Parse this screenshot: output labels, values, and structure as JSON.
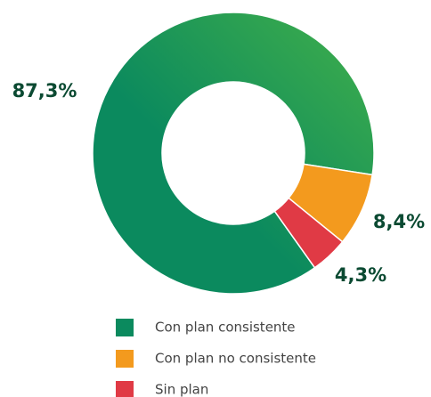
{
  "chart_data": {
    "type": "donut",
    "categories": [
      "Con plan consistente",
      "Con plan no consistente",
      "Sin plan"
    ],
    "values": [
      87.3,
      8.4,
      4.3
    ],
    "value_labels": [
      "87,3%",
      "8,4%",
      "4,3%"
    ],
    "colors": [
      "#0b8a5e",
      "#f39a1e",
      "#e03a45"
    ]
  }
}
